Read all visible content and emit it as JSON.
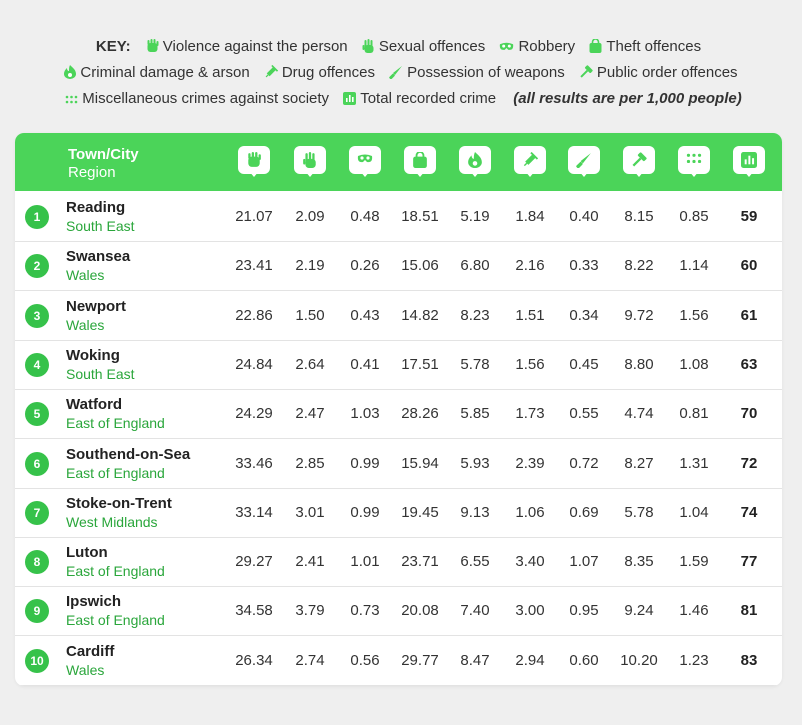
{
  "key": {
    "label": "KEY:",
    "items": [
      {
        "icon": "fist-icon",
        "label": "Violence against the person"
      },
      {
        "icon": "hand-icon",
        "label": "Sexual offences"
      },
      {
        "icon": "mask-icon",
        "label": "Robbery"
      },
      {
        "icon": "bag-icon",
        "label": "Theft offences"
      },
      {
        "icon": "fire-icon",
        "label": "Criminal damage & arson"
      },
      {
        "icon": "syringe-icon",
        "label": "Drug offences"
      },
      {
        "icon": "knife-icon",
        "label": "Possession of weapons"
      },
      {
        "icon": "hammer-icon",
        "label": "Public order offences"
      },
      {
        "icon": "dots-icon",
        "label": "Miscellaneous crimes against society"
      },
      {
        "icon": "chart-icon",
        "label": "Total recorded crime"
      }
    ],
    "note": "(all results are per 1,000 people)"
  },
  "header": {
    "town_label": "Town/City",
    "region_label": "Region",
    "icons": [
      "fist-icon",
      "hand-icon",
      "mask-icon",
      "bag-icon",
      "fire-icon",
      "syringe-icon",
      "knife-icon",
      "hammer-icon",
      "dots-icon",
      "chart-icon"
    ]
  },
  "rows": [
    {
      "rank": "1",
      "town": "Reading",
      "region": "South East",
      "values": [
        "21.07",
        "2.09",
        "0.48",
        "18.51",
        "5.19",
        "1.84",
        "0.40",
        "8.15",
        "0.85"
      ],
      "total": "59"
    },
    {
      "rank": "2",
      "town": "Swansea",
      "region": "Wales",
      "values": [
        "23.41",
        "2.19",
        "0.26",
        "15.06",
        "6.80",
        "2.16",
        "0.33",
        "8.22",
        "1.14"
      ],
      "total": "60"
    },
    {
      "rank": "3",
      "town": "Newport",
      "region": "Wales",
      "values": [
        "22.86",
        "1.50",
        "0.43",
        "14.82",
        "8.23",
        "1.51",
        "0.34",
        "9.72",
        "1.56"
      ],
      "total": "61"
    },
    {
      "rank": "4",
      "town": "Woking",
      "region": "South East",
      "values": [
        "24.84",
        "2.64",
        "0.41",
        "17.51",
        "5.78",
        "1.56",
        "0.45",
        "8.80",
        "1.08"
      ],
      "total": "63"
    },
    {
      "rank": "5",
      "town": "Watford",
      "region": "East of England",
      "values": [
        "24.29",
        "2.47",
        "1.03",
        "28.26",
        "5.85",
        "1.73",
        "0.55",
        "4.74",
        "0.81"
      ],
      "total": "70"
    },
    {
      "rank": "6",
      "town": "Southend-on-Sea",
      "region": "East of England",
      "values": [
        "33.46",
        "2.85",
        "0.99",
        "15.94",
        "5.93",
        "2.39",
        "0.72",
        "8.27",
        "1.31"
      ],
      "total": "72"
    },
    {
      "rank": "7",
      "town": "Stoke-on-Trent",
      "region": "West Midlands",
      "values": [
        "33.14",
        "3.01",
        "0.99",
        "19.45",
        "9.13",
        "1.06",
        "0.69",
        "5.78",
        "1.04"
      ],
      "total": "74"
    },
    {
      "rank": "8",
      "town": "Luton",
      "region": "East of England",
      "values": [
        "29.27",
        "2.41",
        "1.01",
        "23.71",
        "6.55",
        "3.40",
        "1.07",
        "8.35",
        "1.59"
      ],
      "total": "77"
    },
    {
      "rank": "9",
      "town": "Ipswich",
      "region": "East of England",
      "values": [
        "34.58",
        "3.79",
        "0.73",
        "20.08",
        "7.40",
        "3.00",
        "0.95",
        "9.24",
        "1.46"
      ],
      "total": "81"
    },
    {
      "rank": "10",
      "town": "Cardiff",
      "region": "Wales",
      "values": [
        "26.34",
        "2.74",
        "0.56",
        "29.77",
        "8.47",
        "2.94",
        "0.60",
        "10.20",
        "1.23"
      ],
      "total": "83"
    }
  ],
  "colors": {
    "accent": "#4bd459",
    "badge": "#36c24a",
    "region_text": "#2aa63b",
    "background": "#efefef"
  }
}
